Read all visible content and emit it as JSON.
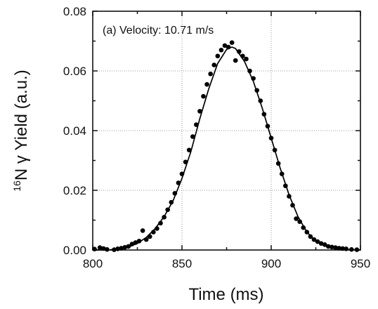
{
  "chart_data": {
    "type": "scatter",
    "annotation": "(a) Velocity: 10.71 m/s",
    "xlabel": "Time (ms)",
    "ylabel_prefix": "16",
    "ylabel_main": "N γ Yield (a.u.)",
    "xlim": [
      800,
      950
    ],
    "ylim": [
      0,
      0.08
    ],
    "xticks": [
      800,
      850,
      900,
      950
    ],
    "yticks": [
      0,
      0.02,
      0.04,
      0.06,
      0.08
    ],
    "xtick_labels": [
      "800",
      "850",
      "900",
      "950"
    ],
    "ytick_labels": [
      "0.00",
      "0.02",
      "0.04",
      "0.06",
      "0.08"
    ],
    "grid": true,
    "series": [
      {
        "kind": "points",
        "x": [
          801,
          804,
          806,
          808,
          812,
          814,
          816,
          818,
          820,
          822,
          824,
          826,
          828,
          830,
          832,
          834,
          836,
          838,
          840,
          842,
          844,
          846,
          848,
          850,
          852,
          854,
          856,
          858,
          860,
          862,
          864,
          866,
          868,
          870,
          872,
          874,
          876,
          878,
          880,
          882,
          884,
          886,
          888,
          890,
          892,
          894,
          896,
          898,
          900,
          902,
          904,
          906,
          908,
          910,
          912,
          914,
          916,
          918,
          920,
          922,
          924,
          926,
          928,
          930,
          932,
          934,
          936,
          938,
          940,
          942,
          945,
          948
        ],
        "y": [
          0.0003,
          0.0008,
          0.0005,
          0.0002,
          0.0001,
          0.0004,
          0.0006,
          0.0009,
          0.0012,
          0.002,
          0.0025,
          0.003,
          0.0065,
          0.0035,
          0.0045,
          0.006,
          0.0072,
          0.009,
          0.011,
          0.0135,
          0.016,
          0.019,
          0.0225,
          0.0255,
          0.0295,
          0.0335,
          0.038,
          0.042,
          0.0465,
          0.0515,
          0.0555,
          0.059,
          0.062,
          0.065,
          0.067,
          0.0685,
          0.068,
          0.0695,
          0.0635,
          0.0665,
          0.065,
          0.064,
          0.06,
          0.0575,
          0.0535,
          0.05,
          0.0455,
          0.0415,
          0.0375,
          0.0335,
          0.029,
          0.0255,
          0.0215,
          0.018,
          0.015,
          0.0105,
          0.0095,
          0.0075,
          0.006,
          0.0045,
          0.0035,
          0.0028,
          0.0022,
          0.0018,
          0.0012,
          0.001,
          0.0008,
          0.0006,
          0.0005,
          0.0004,
          0.0002,
          0.0001
        ]
      },
      {
        "kind": "line",
        "x": [
          800,
          810,
          820,
          825,
          830,
          835,
          840,
          845,
          850,
          855,
          860,
          865,
          870,
          875,
          878,
          880,
          885,
          890,
          895,
          900,
          905,
          910,
          915,
          920,
          925,
          930,
          935,
          940,
          950
        ],
        "y": [
          0.0,
          0.0001,
          0.001,
          0.0022,
          0.0042,
          0.0072,
          0.0112,
          0.0165,
          0.024,
          0.033,
          0.044,
          0.054,
          0.0625,
          0.0672,
          0.068,
          0.0675,
          0.0632,
          0.0565,
          0.0475,
          0.0375,
          0.0275,
          0.0185,
          0.0112,
          0.006,
          0.003,
          0.0014,
          0.0006,
          0.0002,
          0.0
        ]
      }
    ]
  }
}
